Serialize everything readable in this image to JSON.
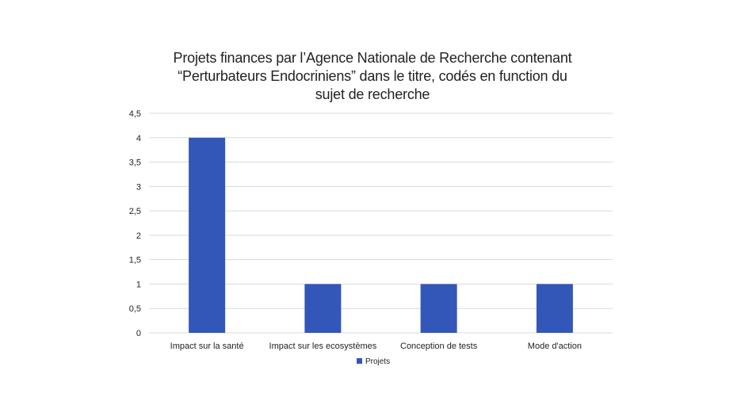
{
  "chart_data": {
    "type": "bar",
    "title_lines": [
      "Projets finances par l’Agence Nationale de Recherche contenant",
      "“Perturbateurs Endocriniens” dans le titre, codés en function du",
      "sujet de recherche"
    ],
    "categories": [
      "Impact sur la santé",
      "Impact sur les ecosystèmes",
      "Conception de tests",
      "Mode d'action"
    ],
    "series": [
      {
        "name": "Projets",
        "values": [
          4,
          1,
          1,
          1
        ],
        "color": "#3357b8"
      }
    ],
    "ylim": [
      0,
      4.5
    ],
    "yticks": [
      "0",
      "0,5",
      "1",
      "1,5",
      "2",
      "2,5",
      "3",
      "3,5",
      "4",
      "4,5"
    ],
    "grid": true,
    "gridline_color": "#d9d9d9",
    "legend_position": "bottom"
  }
}
